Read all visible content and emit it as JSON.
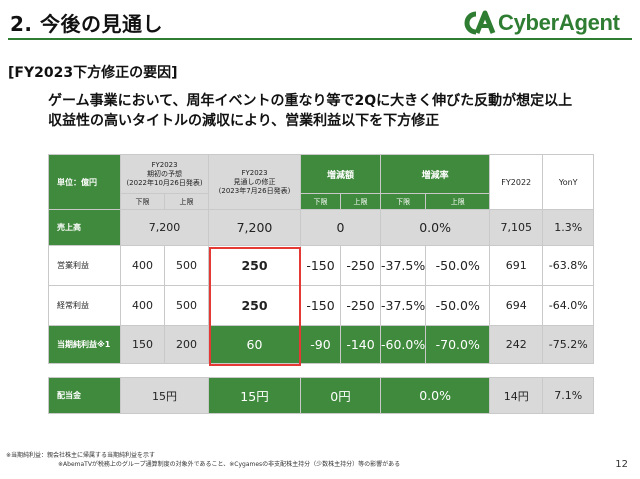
{
  "header": {
    "title": "2. 今後の見通し",
    "logo_text": "CyberAgent",
    "brand_color": "#2e7d32"
  },
  "subtitle": "[FY2023下方修正の要因]",
  "lead": {
    "line1": "ゲーム事業において、周年イベントの重なり等で2Qに大きく伸びた反動が想定以上",
    "line2": "収益性の高いタイトルの減収により、営業利益以下を下方修正"
  },
  "table": {
    "unit_label": "単位：億円",
    "col_forecast_orig": "FY2023\n期初の予想\n(2022年10月26日発表)",
    "col_forecast_rev": "FY2023\n見通しの修正\n(2023年7月26日発表)",
    "col_change_amt": "増減額",
    "col_change_rate": "増減率",
    "col_fy2022": "FY2022",
    "col_yony": "YonY",
    "sub_low": "下限",
    "sub_high": "上限",
    "rows": [
      {
        "label": "売上高",
        "orig": "7,200",
        "rev": "7,200",
        "amt": "0",
        "rate": "0.0%",
        "fy2022": "7,105",
        "yony": "1.3%"
      },
      {
        "label": "営業利益",
        "orig_low": "400",
        "orig_high": "500",
        "rev": "250",
        "amt_low": "-150",
        "amt_high": "-250",
        "rate_low": "-37.5%",
        "rate_high": "-50.0%",
        "fy2022": "691",
        "yony": "-63.8%"
      },
      {
        "label": "経常利益",
        "orig_low": "400",
        "orig_high": "500",
        "rev": "250",
        "amt_low": "-150",
        "amt_high": "-250",
        "rate_low": "-37.5%",
        "rate_high": "-50.0%",
        "fy2022": "694",
        "yony": "-64.0%"
      },
      {
        "label": "当期純利益※1",
        "orig_low": "150",
        "orig_high": "200",
        "rev": "60",
        "amt_low": "-90",
        "amt_high": "-140",
        "rate_low": "-60.0%",
        "rate_high": "-70.0%",
        "fy2022": "242",
        "yony": "-75.2%"
      }
    ],
    "dividend": {
      "label": "配当金",
      "orig": "15円",
      "rev": "15円",
      "amt": "0円",
      "rate": "0.0%",
      "fy2022": "14円",
      "yony": "7.1%"
    }
  },
  "footnote": {
    "line1": "※当期純利益：親会社株主に帰属する当期純利益を示す",
    "line2": "※AbemaTVが税務上のグループ通算制度の対象外であること、※Cygamesの非支配株主持分（少数株主持分）等の影響がある"
  },
  "page_number": "12"
}
